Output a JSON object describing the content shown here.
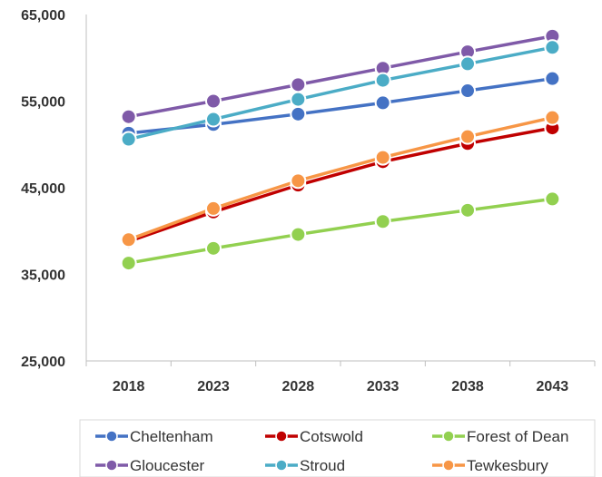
{
  "chart_data": {
    "type": "line",
    "title": "",
    "xlabel": "",
    "ylabel": "",
    "x": [
      "2018",
      "2023",
      "2028",
      "2033",
      "2038",
      "2043"
    ],
    "ylim": [
      25000,
      65000
    ],
    "yticks": [
      25000,
      35000,
      45000,
      55000,
      65000
    ],
    "ytick_labels": [
      "25,000",
      "35,000",
      "45,000",
      "55,000",
      "65,000"
    ],
    "grid": false,
    "legend_position": "bottom",
    "series": [
      {
        "name": "Cheltenham",
        "color": "#4472C4",
        "values": [
          51300,
          52300,
          53500,
          54800,
          56200,
          57600
        ]
      },
      {
        "name": "Cotswold",
        "color": "#C00000",
        "values": [
          38800,
          42200,
          45300,
          48000,
          50100,
          51900
        ]
      },
      {
        "name": "Forest of Dean",
        "color": "#92D050",
        "values": [
          36300,
          38000,
          39600,
          41100,
          42400,
          43700
        ]
      },
      {
        "name": "Gloucester",
        "color": "#7F5AA8",
        "values": [
          53200,
          55000,
          56900,
          58800,
          60700,
          62500
        ]
      },
      {
        "name": "Stroud",
        "color": "#4BACC6",
        "values": [
          50600,
          52900,
          55200,
          57400,
          59300,
          61200
        ]
      },
      {
        "name": "Tewkesbury",
        "color": "#F79646",
        "values": [
          39000,
          42600,
          45800,
          48500,
          50900,
          53100
        ]
      }
    ]
  }
}
